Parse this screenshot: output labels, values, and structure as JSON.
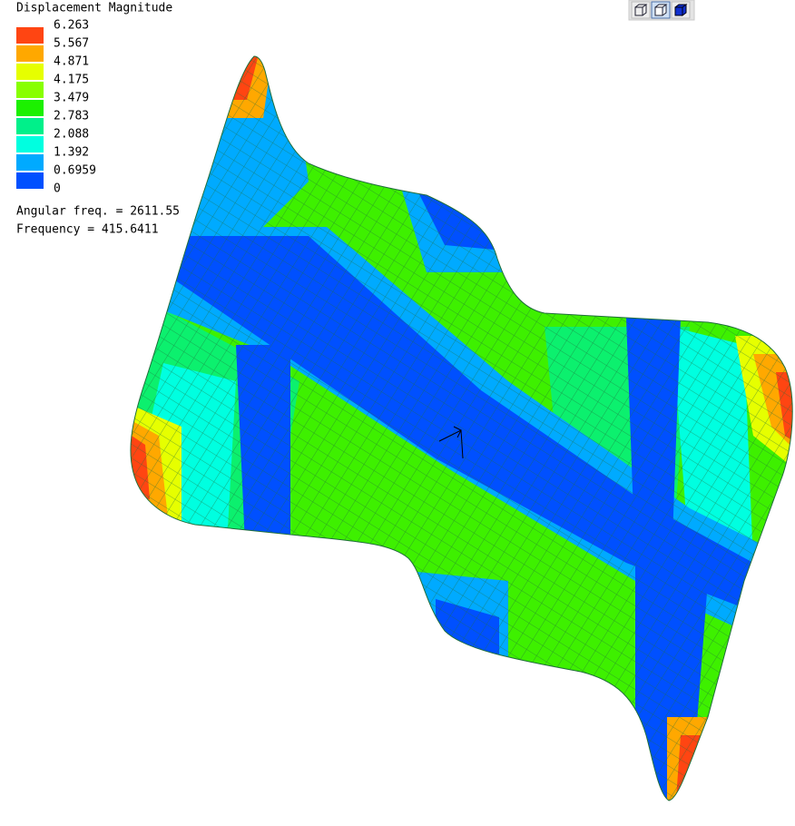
{
  "legend": {
    "title": "Displacement Magnitude",
    "labels": [
      "6.263",
      "5.567",
      "4.871",
      "4.175",
      "3.479",
      "2.783",
      "2.088",
      "1.392",
      "0.6959",
      "0"
    ],
    "colors": [
      "#ff4512",
      "#ffa800",
      "#e6ff00",
      "#88ff00",
      "#1cf000",
      "#00f08a",
      "#00ffe0",
      "#00aaff",
      "#0050ff"
    ]
  },
  "info": [
    "Angular freq. = 2611.55",
    "Frequency = 415.6411"
  ]
}
